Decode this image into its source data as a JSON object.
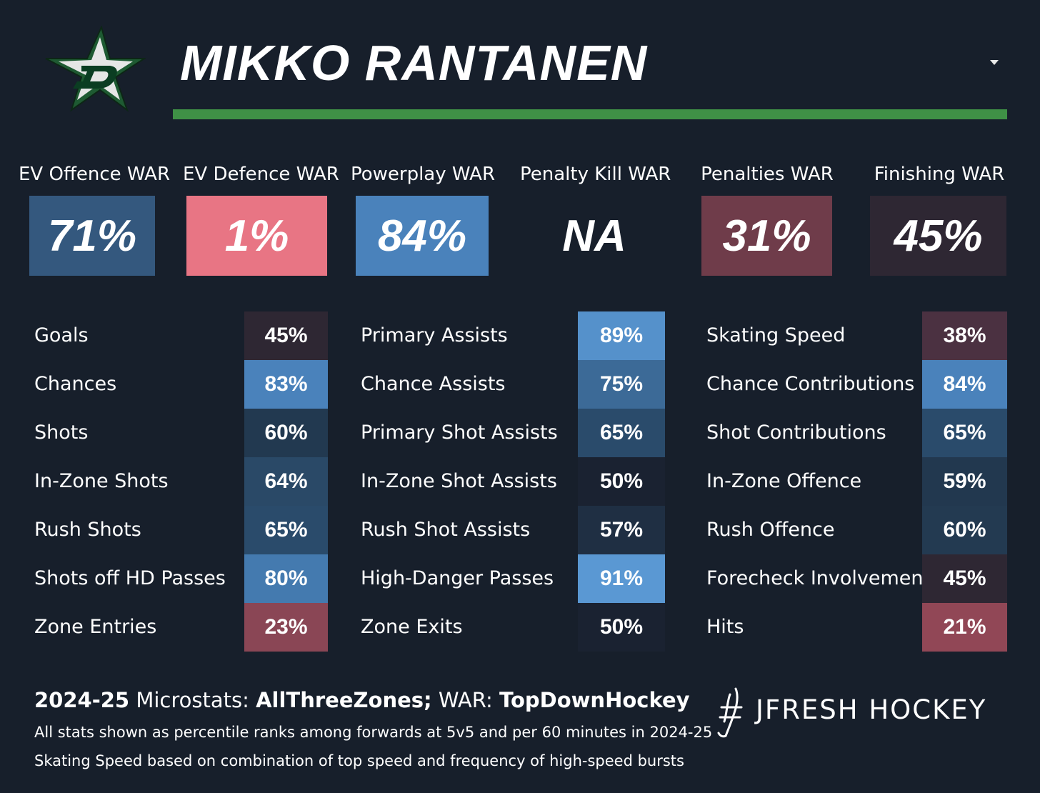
{
  "header": {
    "player_name": "MIKKO RANTANEN",
    "team_logo_icon": "dallas-stars-logo",
    "accent_color": "#3f9146"
  },
  "war": [
    {
      "label": "EV Offence WAR",
      "value": "71%",
      "color": "#34587e"
    },
    {
      "label": "EV Defence WAR",
      "value": "1%",
      "color": "#e87584"
    },
    {
      "label": "Powerplay WAR",
      "value": "84%",
      "color": "#4a82bb"
    },
    {
      "label": "Penalty Kill WAR",
      "value": "NA",
      "color": "#171f2b"
    },
    {
      "label": "Penalties WAR",
      "value": "31%",
      "color": "#6f3c4a"
    },
    {
      "label": "Finishing WAR",
      "value": "45%",
      "color": "#2e2733"
    }
  ],
  "stat_columns": [
    {
      "rows": [
        {
          "label": "Goals",
          "value": "45%",
          "color": "#2e2733"
        },
        {
          "label": "Chances",
          "value": "83%",
          "color": "#4a82bb"
        },
        {
          "label": "Shots",
          "value": "60%",
          "color": "#223950"
        },
        {
          "label": "In-Zone Shots",
          "value": "64%",
          "color": "#2a4967"
        },
        {
          "label": "Rush Shots",
          "value": "65%",
          "color": "#2a4b6b"
        },
        {
          "label": "Shots off HD Passes",
          "value": "80%",
          "color": "#447aaf"
        },
        {
          "label": "Zone Entries",
          "value": "23%",
          "color": "#8a4655"
        }
      ]
    },
    {
      "rows": [
        {
          "label": "Primary Assists",
          "value": "89%",
          "color": "#5591cb"
        },
        {
          "label": "Chance Assists",
          "value": "75%",
          "color": "#3c6a97"
        },
        {
          "label": "Primary Shot Assists",
          "value": "65%",
          "color": "#2a4b6b"
        },
        {
          "label": "In-Zone Shot Assists",
          "value": "50%",
          "color": "#1a2231"
        },
        {
          "label": "Rush Shot Assists",
          "value": "57%",
          "color": "#1f2f43"
        },
        {
          "label": "High-Danger Passes",
          "value": "91%",
          "color": "#5a98d3"
        },
        {
          "label": "Zone Exits",
          "value": "50%",
          "color": "#1a2231"
        }
      ]
    },
    {
      "rows": [
        {
          "label": "Skating Speed",
          "value": "38%",
          "color": "#4b3141"
        },
        {
          "label": "Chance Contributions",
          "value": "84%",
          "color": "#4a82bb"
        },
        {
          "label": "Shot Contributions",
          "value": "65%",
          "color": "#2a4b6b"
        },
        {
          "label": "In-Zone Offence",
          "value": "59%",
          "color": "#22384f"
        },
        {
          "label": "Rush Offence",
          "value": "60%",
          "color": "#233a51"
        },
        {
          "label": "Forecheck Involvement",
          "value": "45%",
          "color": "#2e2733"
        },
        {
          "label": "Hits",
          "value": "21%",
          "color": "#914756"
        }
      ]
    }
  ],
  "footer": {
    "season": "2024-25",
    "microstats_label": " Microstats: ",
    "microstats_source": "AllThreeZones;",
    "war_label": " WAR: ",
    "war_source": "TopDownHockey",
    "note1": "All stats shown as percentile ranks among forwards at 5v5 and per 60 minutes in 2024-25",
    "note2": "Skating Speed based on combination of top speed and frequency of high-speed bursts",
    "brand": "JFRESH HOCKEY",
    "brand_icon": "jfresh-logo-icon"
  }
}
